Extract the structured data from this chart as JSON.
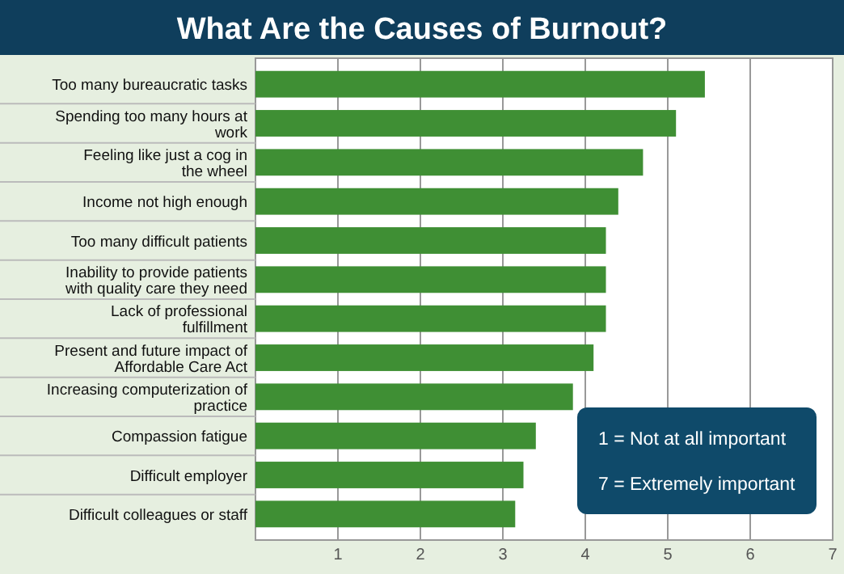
{
  "chart_data": {
    "type": "bar",
    "orientation": "horizontal",
    "title": "What Are the Causes of Burnout?",
    "categories": [
      "Too many bureaucratic tasks",
      "Spending too many hours at work",
      "Feeling like just  a cog in the wheel",
      "Income not high enough",
      "Too many difficult patients",
      "Inability to provide patients with quality care they need",
      "Lack of professional fulfillment",
      "Present and future impact of Affordable Care Act",
      "Increasing computerization of practice",
      "Compassion fatigue",
      "Difficult employer",
      "Difficult colleagues or staff"
    ],
    "values": [
      5.45,
      5.1,
      4.7,
      4.4,
      4.25,
      4.25,
      4.25,
      4.1,
      3.85,
      3.4,
      3.25,
      3.15
    ],
    "color": "#3f8f34",
    "xlim": [
      0,
      7
    ],
    "xticks": [
      1,
      2,
      3,
      4,
      5,
      6,
      7
    ],
    "grid": "x",
    "annotations": [
      "1 = Not at all important",
      "7 = Extremely important"
    ]
  }
}
